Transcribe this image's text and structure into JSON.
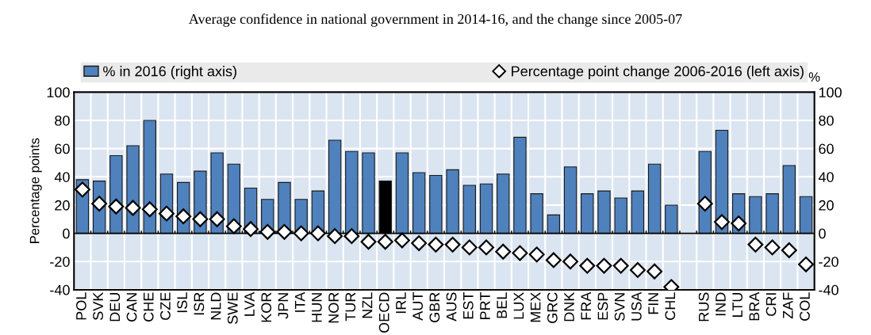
{
  "chart_data": {
    "type": "bar",
    "title": "Average confidence in national government in 2014-16, and the change since 2005-07",
    "ylabel": "Percentage points",
    "y2label": "%",
    "categories": [
      "POL",
      "SVK",
      "DEU",
      "CAN",
      "CHE",
      "CZE",
      "ISL",
      "ISR",
      "NLD",
      "SWE",
      "LVA",
      "KOR",
      "JPN",
      "ITA",
      "HUN",
      "NOR",
      "TUR",
      "NZL",
      "OECD",
      "IRL",
      "AUT",
      "GBR",
      "AUS",
      "EST",
      "PRT",
      "BEL",
      "LUX",
      "MEX",
      "GRC",
      "DNK",
      "FRA",
      "ESP",
      "SVN",
      "USA",
      "FIN",
      "CHL",
      null,
      "RUS",
      "IND",
      "LTU",
      "BRA",
      "CRI",
      "ZAF",
      "COL"
    ],
    "series": [
      {
        "name": "% in 2016 (right axis)",
        "color": "#4f81bd",
        "colors": [
          "#4f81bd",
          "#4f81bd",
          "#4f81bd",
          "#4f81bd",
          "#4f81bd",
          "#4f81bd",
          "#4f81bd",
          "#4f81bd",
          "#4f81bd",
          "#4f81bd",
          "#4f81bd",
          "#4f81bd",
          "#4f81bd",
          "#4f81bd",
          "#4f81bd",
          "#4f81bd",
          "#4f81bd",
          "#4f81bd",
          "#000000",
          "#4f81bd",
          "#4f81bd",
          "#4f81bd",
          "#4f81bd",
          "#4f81bd",
          "#4f81bd",
          "#4f81bd",
          "#4f81bd",
          "#4f81bd",
          "#4f81bd",
          "#4f81bd",
          "#4f81bd",
          "#4f81bd",
          "#4f81bd",
          "#4f81bd",
          "#4f81bd",
          "#4f81bd",
          "#4f81bd",
          "#4f81bd",
          "#4f81bd",
          "#4f81bd",
          "#4f81bd",
          "#4f81bd",
          "#4f81bd",
          "#4f81bd"
        ],
        "values": [
          38,
          37,
          55,
          62,
          80,
          42,
          36,
          44,
          57,
          49,
          32,
          24,
          36,
          24,
          30,
          66,
          58,
          57,
          37,
          57,
          43,
          41,
          45,
          34,
          35,
          42,
          68,
          28,
          13,
          47,
          28,
          30,
          25,
          30,
          49,
          20,
          null,
          58,
          73,
          28,
          26,
          28,
          48,
          26
        ]
      },
      {
        "name": "Percentage point change 2006-2016 (left axis)",
        "type": "scatter",
        "marker": "diamond",
        "color": "#ffffff",
        "values": [
          31,
          21,
          19,
          18,
          17,
          14,
          12,
          10,
          10,
          5,
          3,
          1,
          1,
          0,
          0,
          -2,
          -2,
          -6,
          -6,
          -5,
          -7,
          -8,
          -8,
          -10,
          -10,
          -13,
          -14,
          -15,
          -19,
          -20,
          -23,
          -23,
          -23,
          -26,
          -27,
          -38,
          null,
          21,
          8,
          7,
          -8,
          -10,
          -12,
          -22
        ]
      }
    ],
    "ylim": [
      -40,
      100
    ],
    "yticks": [
      -40,
      -20,
      0,
      20,
      40,
      60,
      80,
      100
    ],
    "y2lim": [
      -40,
      100
    ],
    "y2ticks": [
      -40,
      -20,
      0,
      20,
      40,
      60,
      80,
      100
    ],
    "ref_lines": [
      {
        "axis": "y",
        "value": 0,
        "color": "#000000"
      }
    ],
    "grid": true,
    "legend": "top"
  }
}
